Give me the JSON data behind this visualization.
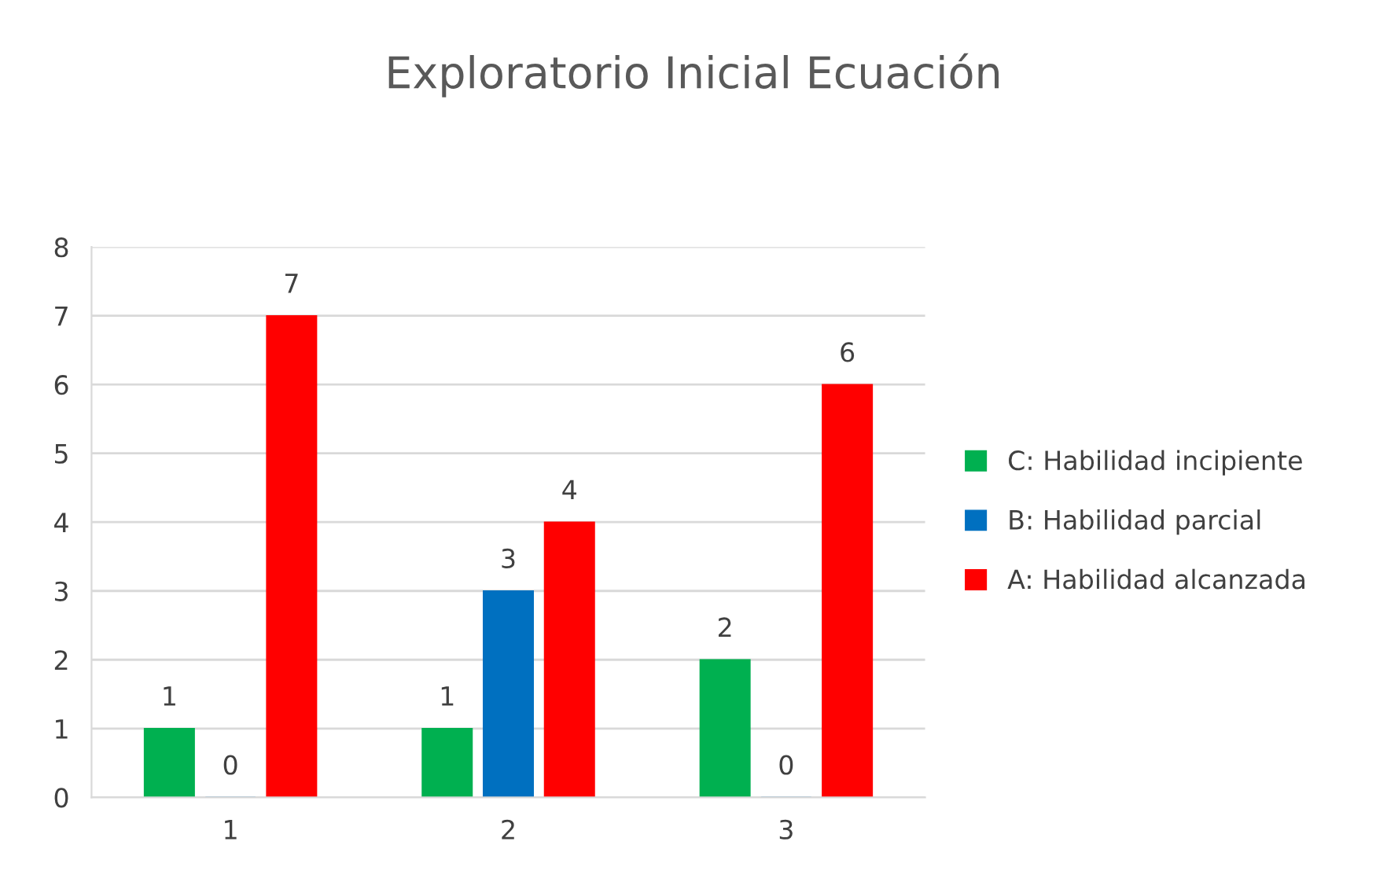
{
  "chart_data": {
    "type": "bar",
    "title": "Exploratorio Inicial Ecuación",
    "categories": [
      "1",
      "2",
      "3"
    ],
    "series": [
      {
        "name": "C: Habilidad incipiente",
        "color": "#00b050",
        "values": [
          1,
          1,
          2
        ]
      },
      {
        "name": "B: Habilidad parcial",
        "color": "#0070c0",
        "values": [
          0,
          3,
          0
        ]
      },
      {
        "name": "A: Habilidad alcanzada",
        "color": "#ff0000",
        "values": [
          7,
          4,
          6
        ]
      }
    ],
    "ylim": [
      0,
      8
    ],
    "yticks": [
      0,
      1,
      2,
      3,
      4,
      5,
      6,
      7,
      8
    ],
    "grid": "y",
    "legend": "right",
    "data_labels": true
  }
}
